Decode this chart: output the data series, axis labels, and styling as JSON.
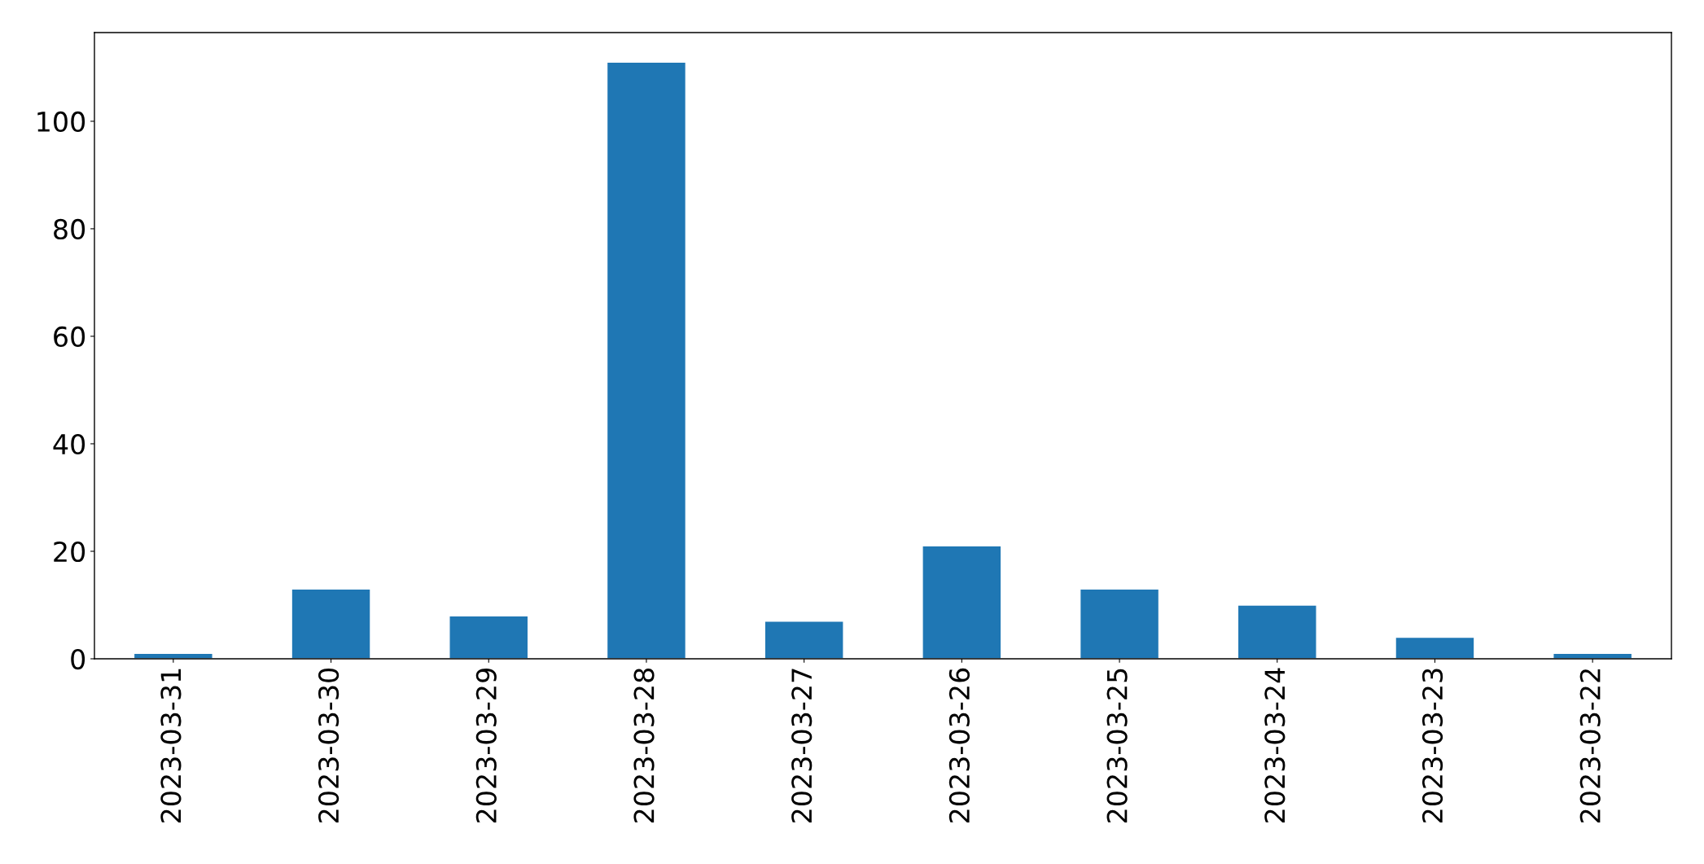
{
  "chart_data": {
    "type": "bar",
    "categories": [
      "2023-03-31",
      "2023-03-30",
      "2023-03-29",
      "2023-03-28",
      "2023-03-27",
      "2023-03-26",
      "2023-03-25",
      "2023-03-24",
      "2023-03-23",
      "2023-03-22"
    ],
    "values": [
      1,
      13,
      8,
      111,
      7,
      21,
      13,
      10,
      4,
      1
    ],
    "color": "#1f77b4",
    "ylim": [
      0,
      116.5
    ],
    "yticks": [
      0,
      20,
      40,
      60,
      80,
      100
    ],
    "grid": false
  }
}
